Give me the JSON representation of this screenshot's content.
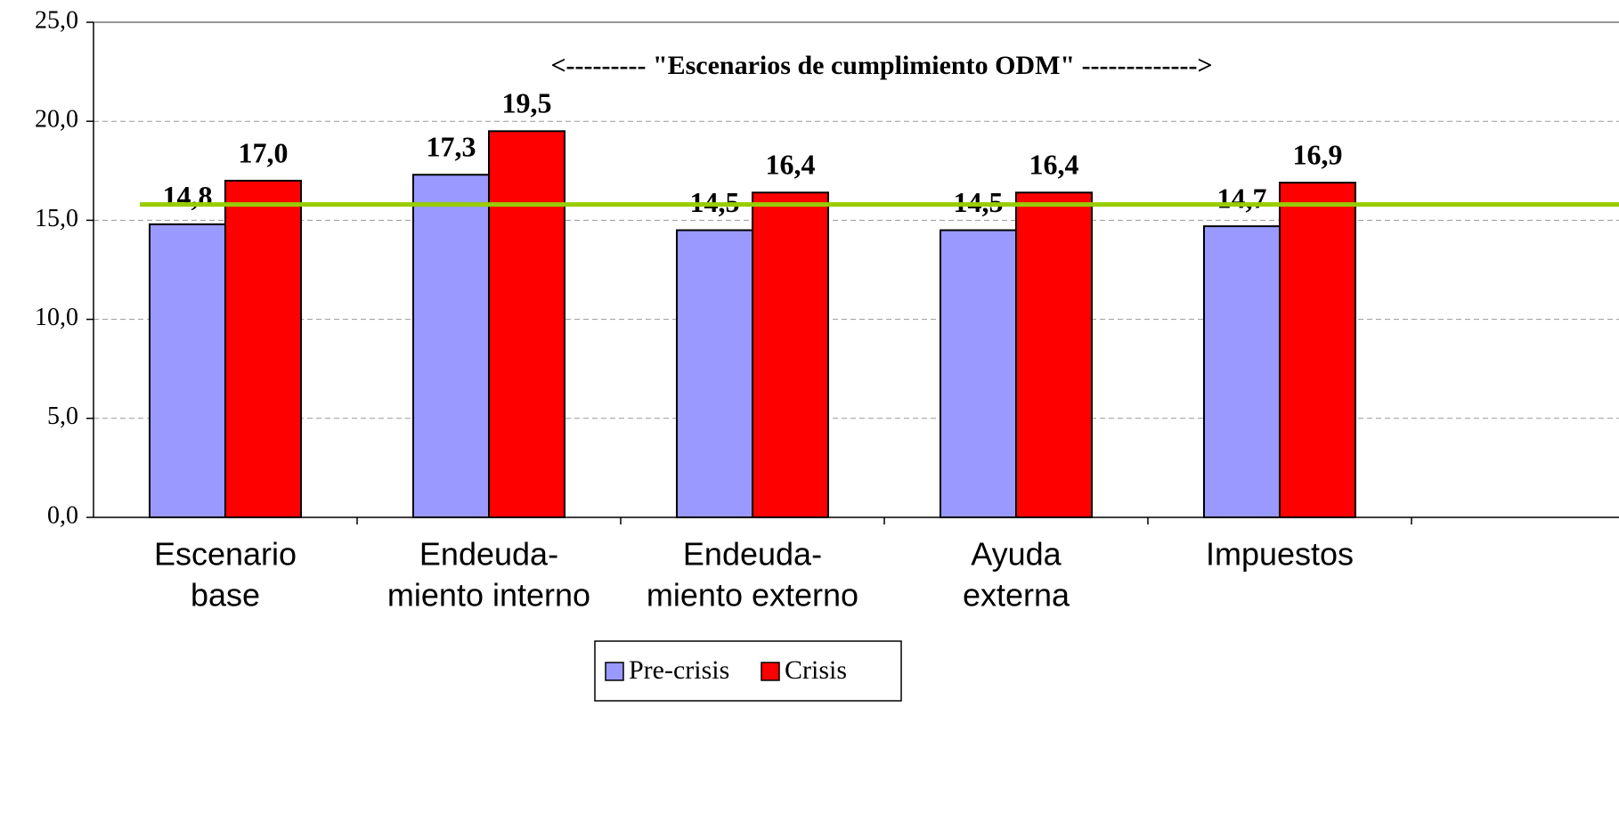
{
  "chart_data": {
    "type": "bar",
    "annotation": "<---------  \"Escenarios de cumplimiento ODM\"  ------------->",
    "categories": [
      [
        "Escenario",
        "base"
      ],
      [
        "Endeuda-",
        "miento interno"
      ],
      [
        "Endeuda-",
        "miento externo"
      ],
      [
        "Ayuda",
        "externa"
      ],
      [
        "Impuestos"
      ]
    ],
    "series": [
      {
        "name": "Pre-crisis",
        "color": "#9999ff",
        "values": [
          14.8,
          17.3,
          14.5,
          14.5,
          14.7
        ],
        "value_labels": [
          "14,8",
          "17,3",
          "14,5",
          "14,5",
          "14,7"
        ]
      },
      {
        "name": "Crisis",
        "color": "#ff0000",
        "values": [
          17.0,
          19.5,
          16.4,
          16.4,
          16.9
        ],
        "value_labels": [
          "17,0",
          "19,5",
          "16,4",
          "16,4",
          "16,9"
        ]
      }
    ],
    "reference_line": {
      "value": 15.8,
      "color": "#99cc00"
    },
    "ylim": [
      0,
      25
    ],
    "yticks": [
      {
        "value": 0,
        "label": "0,0"
      },
      {
        "value": 5,
        "label": "5,0"
      },
      {
        "value": 10,
        "label": "10,0"
      },
      {
        "value": 15,
        "label": "15,0"
      },
      {
        "value": 20,
        "label": "20,0"
      },
      {
        "value": 25,
        "label": "25,0"
      }
    ],
    "grid": true,
    "legend": "bottom"
  }
}
